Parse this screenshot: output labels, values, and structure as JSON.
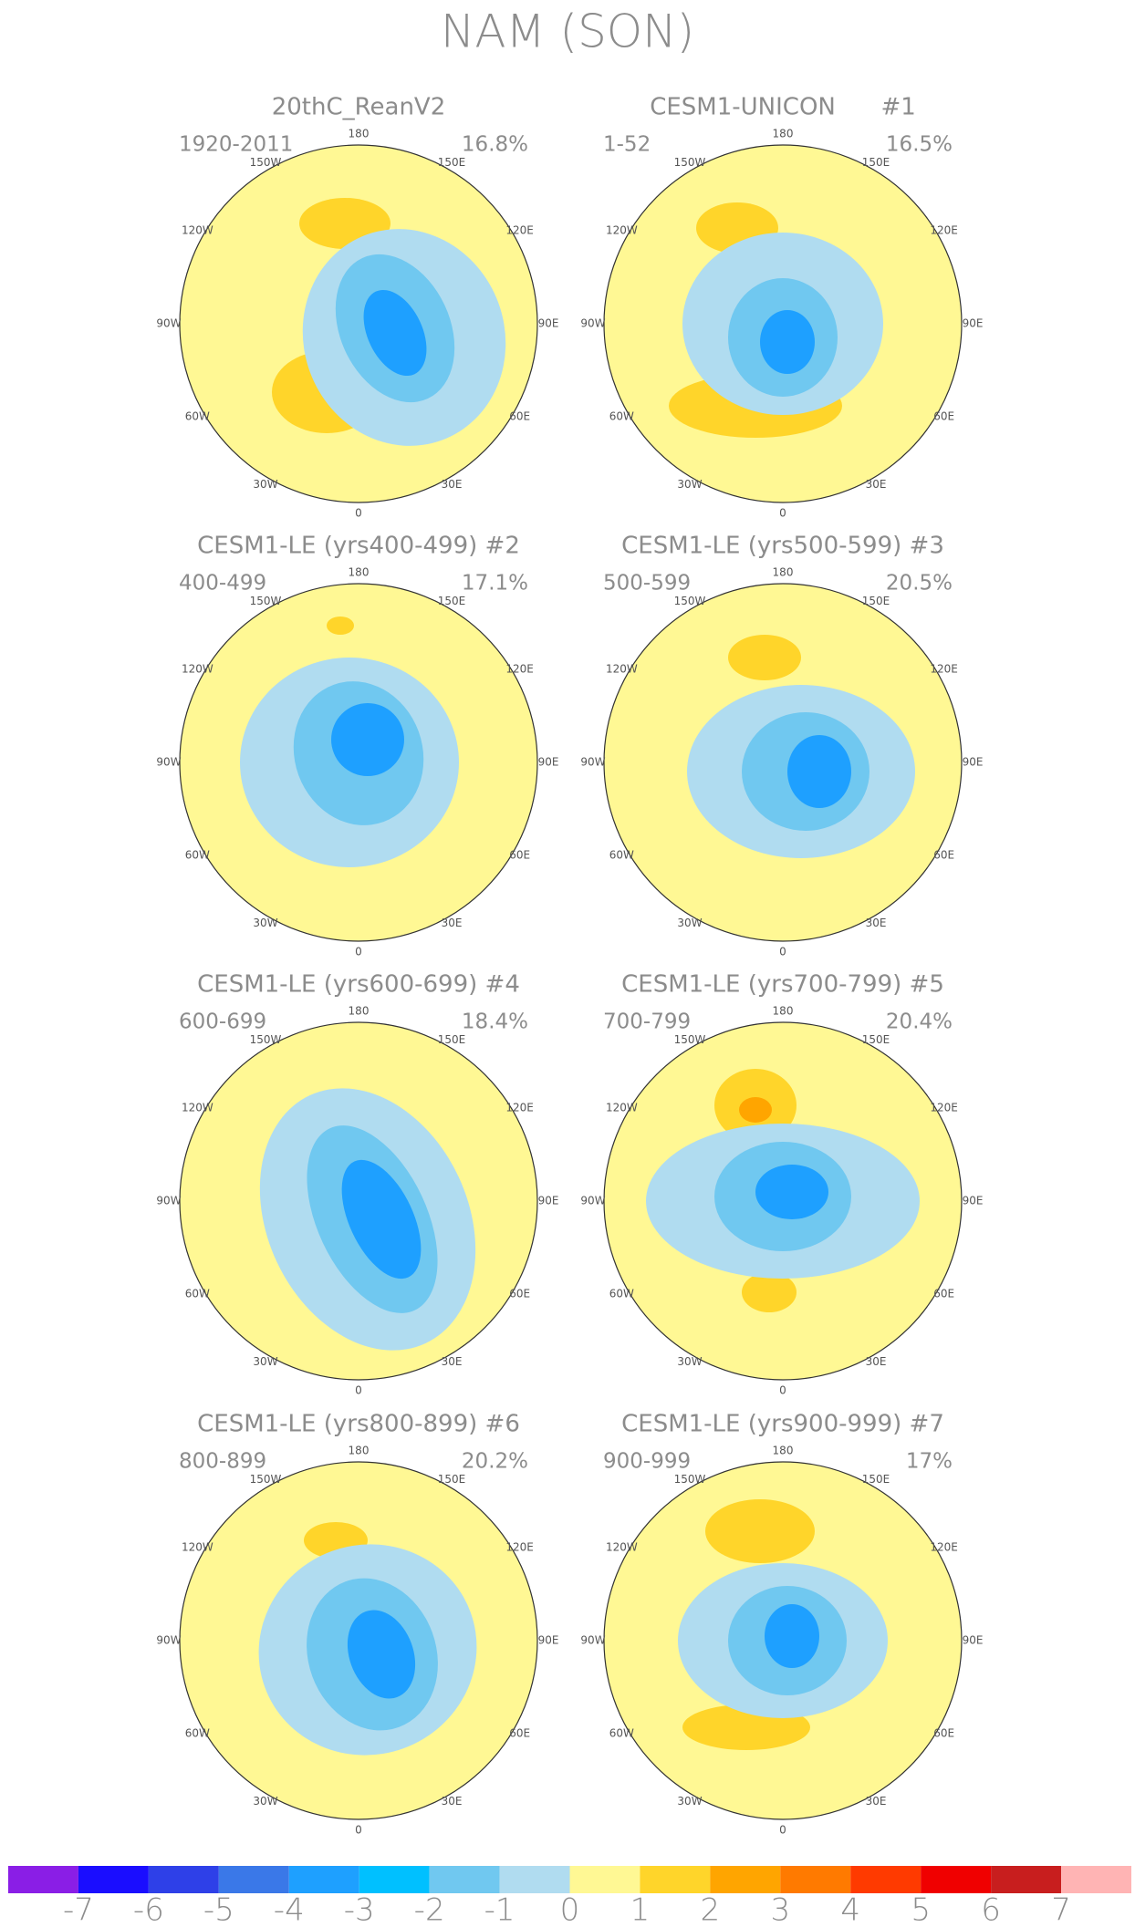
{
  "title": "NAM (SON)",
  "longitude_labels": [
    "0",
    "30E",
    "60E",
    "90E",
    "120E",
    "150E",
    "180",
    "150W",
    "120W",
    "90W",
    "60W",
    "30W"
  ],
  "panels": [
    {
      "title": "20thC_ReanV2",
      "period": "1920-2011",
      "variance": "16.8%"
    },
    {
      "title": "CESM1-UNICON      #1",
      "period": "1-52",
      "variance": "16.5%"
    },
    {
      "title": "CESM1-LE (yrs400-499) #2",
      "period": "400-499",
      "variance": "17.1%"
    },
    {
      "title": "CESM1-LE (yrs500-599) #3",
      "period": "500-599",
      "variance": "20.5%"
    },
    {
      "title": "CESM1-LE (yrs600-699) #4",
      "period": "600-699",
      "variance": "18.4%"
    },
    {
      "title": "CESM1-LE (yrs700-799) #5",
      "period": "700-799",
      "variance": "20.4%"
    },
    {
      "title": "CESM1-LE (yrs800-899) #6",
      "period": "800-899",
      "variance": "20.2%"
    },
    {
      "title": "CESM1-LE (yrs900-999) #7",
      "period": "900-999",
      "variance": "17%"
    }
  ],
  "colorbar": {
    "colors": [
      "#8a1ee6",
      "#1a0dff",
      "#2e40e8",
      "#3a78e8",
      "#1ea0ff",
      "#00c0ff",
      "#70c8f0",
      "#b0dcf0",
      "#fff894",
      "#ffd52a",
      "#ffa500",
      "#ff7a00",
      "#ff3a00",
      "#f00000",
      "#c81e1e",
      "#ffb4b4"
    ],
    "levels": [
      -7,
      -6,
      -5,
      -4,
      -3,
      -2,
      -1,
      0,
      1,
      2,
      3,
      4,
      5,
      6,
      7
    ]
  }
}
